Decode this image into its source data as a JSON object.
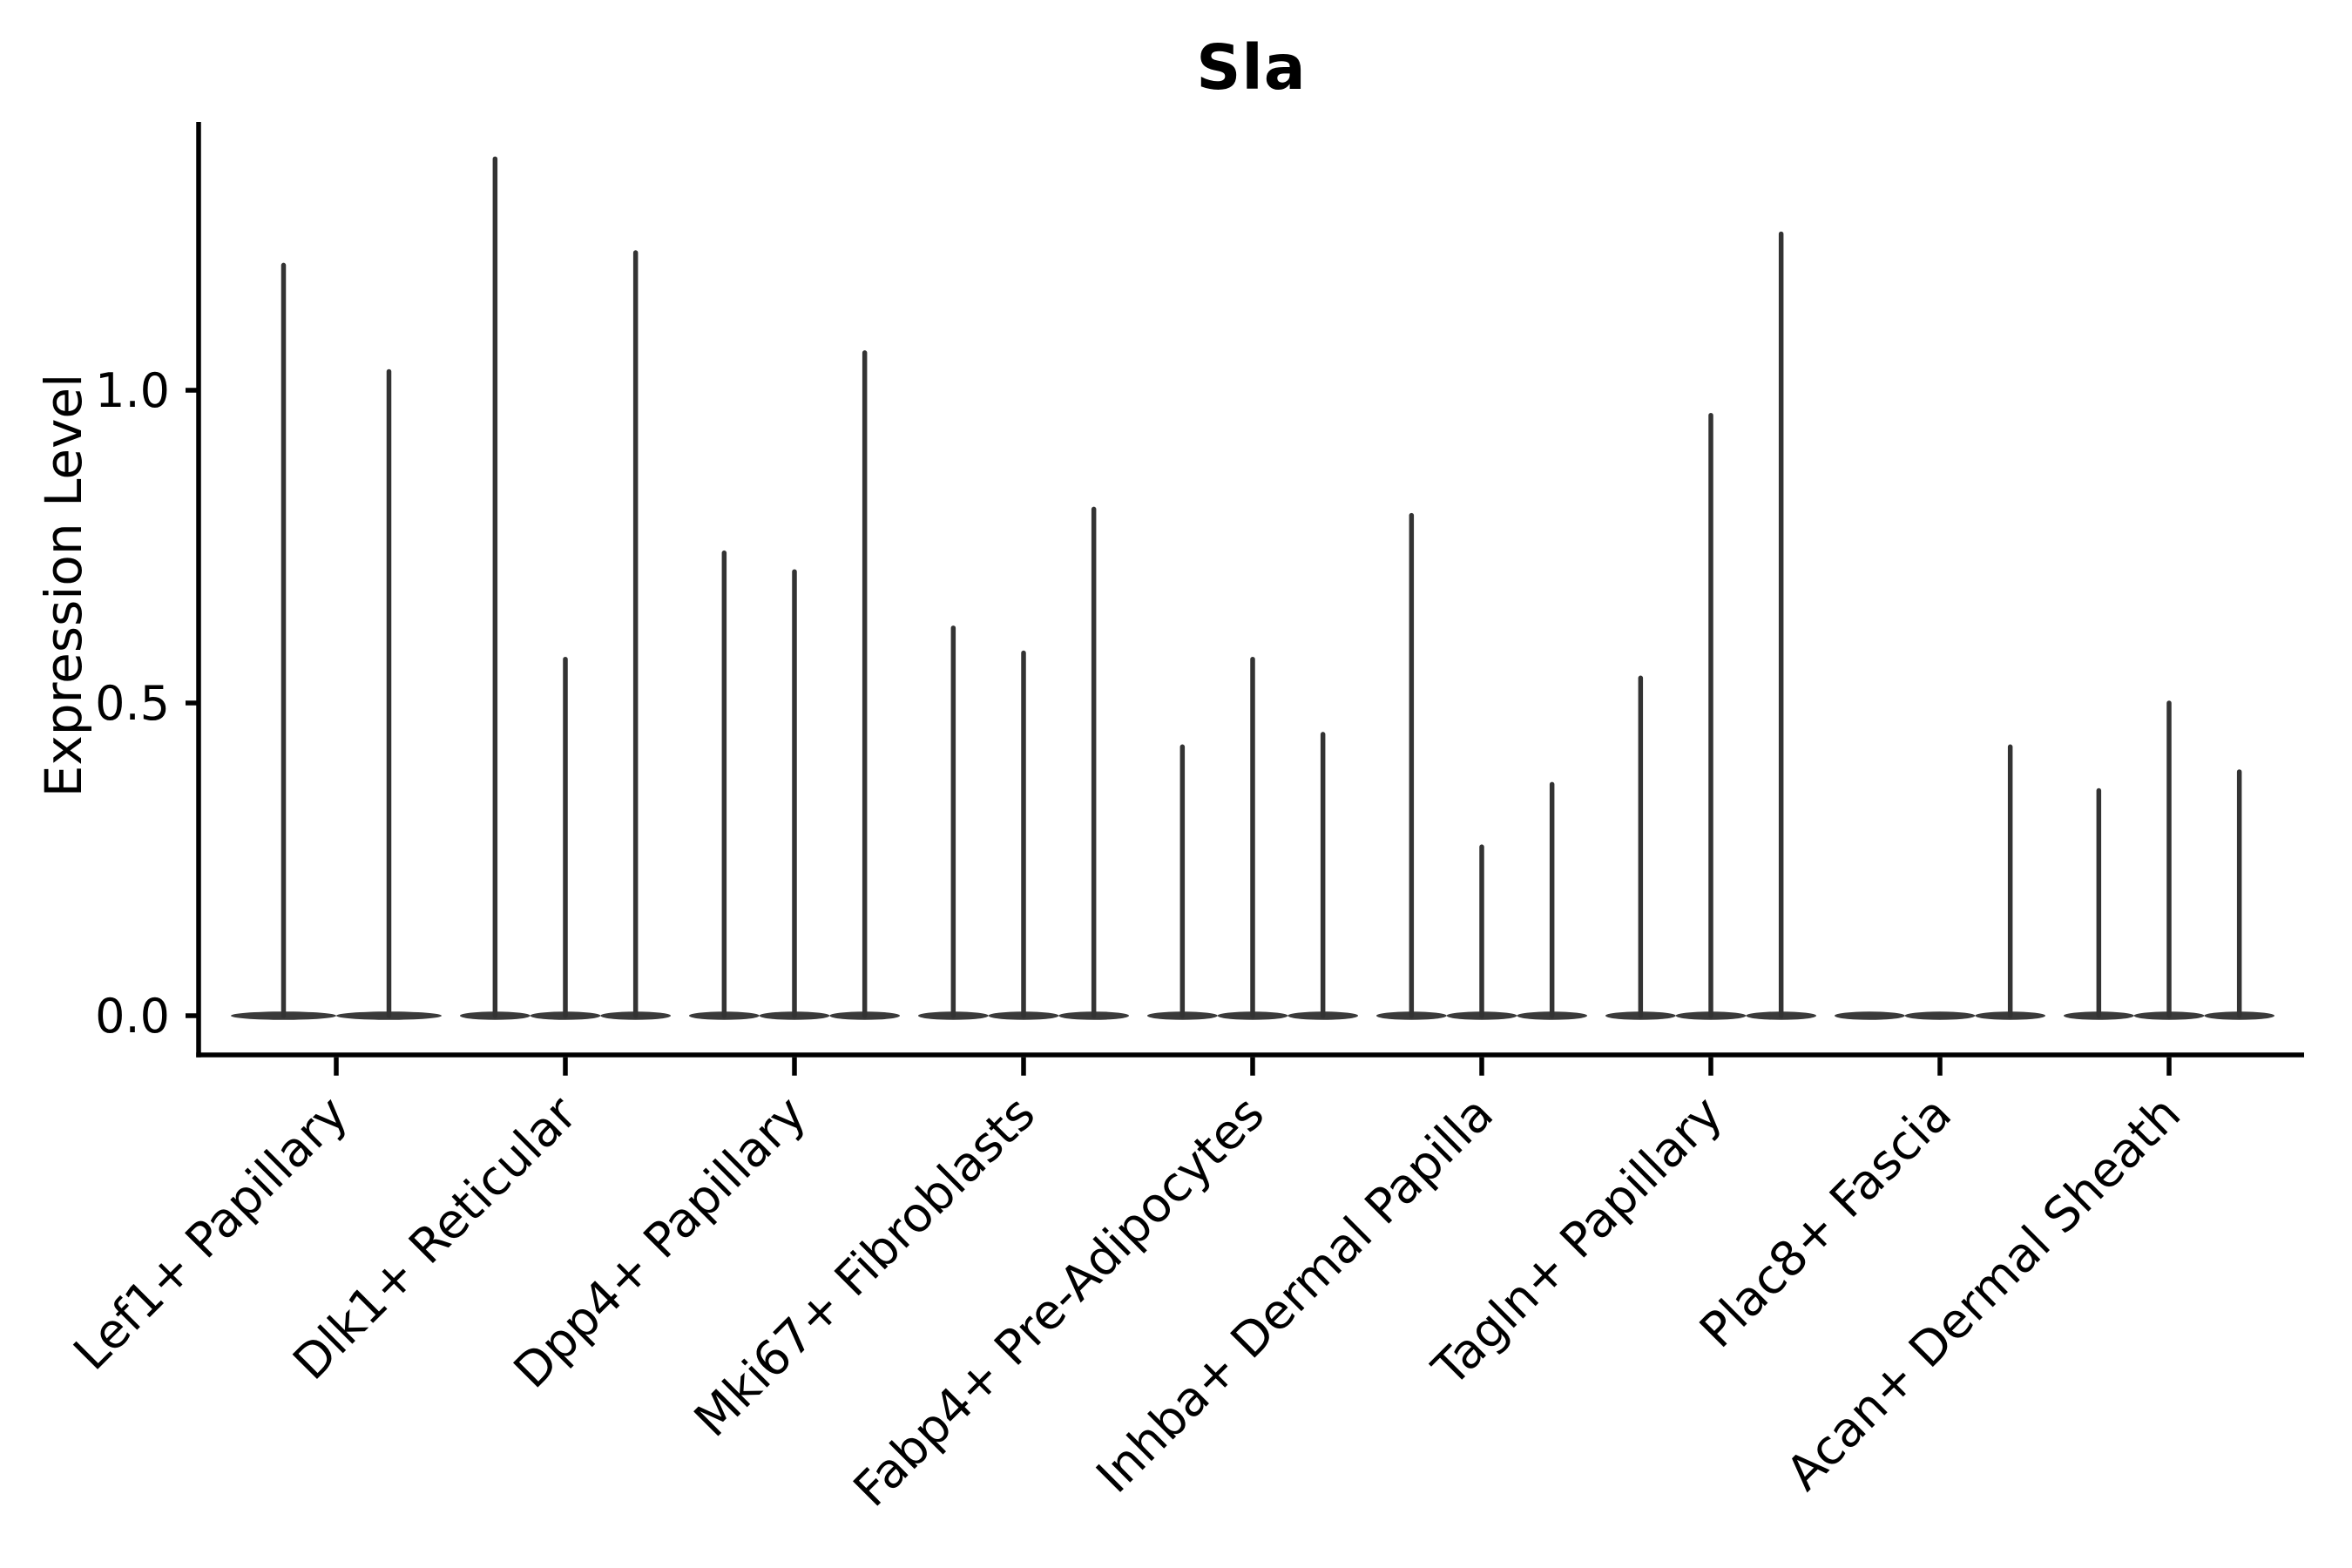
{
  "figure": {
    "background": "#ffffff"
  },
  "chart_data": {
    "type": "violin",
    "title": "Sla",
    "ylabel": "Expression Level",
    "xlabel": "",
    "legend": "none",
    "grid": false,
    "ylim": [
      0.0,
      1.435
    ],
    "ytick_labels": [
      "0.0",
      "0.5",
      "1.0"
    ],
    "ytick_values": [
      0.0,
      0.5,
      1.0
    ],
    "categories": [
      "Lef1+ Papillary",
      "Dlk1+ Reticular",
      "Dpp4+ Papillary",
      "Mki67+ Fibroblasts",
      "Fabp4+ Pre-Adipocytes",
      "Inhba+ Dermal Papilla",
      "Tagln+ Papillary",
      "Plac8+ Fascia",
      "Acan+ Dermal Sheath"
    ],
    "violin_peaks_per_category": [
      [
        1.2,
        1.03
      ],
      [
        1.37,
        0.57,
        1.22
      ],
      [
        0.74,
        0.71,
        1.06
      ],
      [
        0.62,
        0.58,
        0.81
      ],
      [
        0.43,
        0.57,
        0.45
      ],
      [
        0.8,
        0.27,
        0.37
      ],
      [
        0.54,
        0.96,
        1.25
      ],
      [
        0.0,
        0.0,
        0.43
      ],
      [
        0.36,
        0.5,
        0.39
      ]
    ],
    "colors": {
      "violin_fill": "#3a3a3a",
      "spike_stroke": "#333333",
      "axis": "#000000",
      "text": "#000000",
      "background": "#ffffff"
    }
  }
}
